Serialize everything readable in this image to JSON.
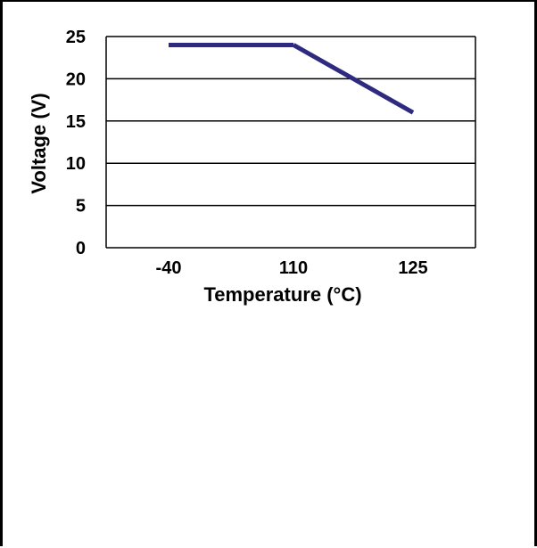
{
  "chart_data": {
    "type": "line",
    "title": "",
    "xlabel": "Temperature (°C)",
    "ylabel": "Voltage (V)",
    "categories": [
      "-40",
      "110",
      "125"
    ],
    "series": [
      {
        "values": [
          24,
          24,
          16
        ]
      }
    ],
    "ylim": [
      0,
      25
    ],
    "yticks": [
      "0",
      "5",
      "10",
      "15",
      "20",
      "25"
    ],
    "grid": "horizontal",
    "line_color": "#2e2a7f"
  }
}
